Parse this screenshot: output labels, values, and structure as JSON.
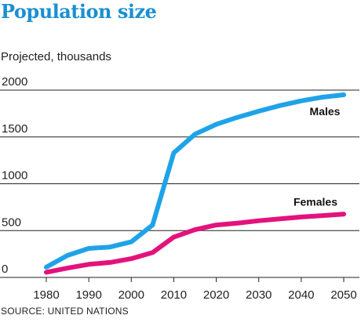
{
  "header": {
    "title": "Population size",
    "subtitle": "Projected, thousands"
  },
  "footer": {
    "source": "SOURCE: UNITED NATIONS"
  },
  "colors": {
    "title": "#1a8fd1",
    "males": "#1fa3e8",
    "females": "#e3127d",
    "gridline": "#222222",
    "text": "#222222"
  },
  "chart_data": {
    "type": "line",
    "title": "Population size",
    "subtitle": "Projected, thousands",
    "xlabel": "",
    "ylabel": "",
    "xlim": [
      1980,
      2050
    ],
    "ylim": [
      0,
      2000
    ],
    "x_ticks": [
      "1980",
      "1990",
      "2000",
      "2010",
      "2020",
      "2030",
      "2040",
      "2050"
    ],
    "y_ticks": [
      "0",
      "500",
      "1000",
      "1500",
      "2000"
    ],
    "grid": "horizontal",
    "x": [
      1980,
      1985,
      1990,
      1995,
      2000,
      2005,
      2010,
      2015,
      2020,
      2025,
      2030,
      2035,
      2040,
      2045,
      2050
    ],
    "series": [
      {
        "name": "Males",
        "color": "#1fa3e8",
        "values": [
          110,
          235,
          310,
          325,
          380,
          560,
          1330,
          1530,
          1635,
          1710,
          1775,
          1835,
          1885,
          1925,
          1950
        ]
      },
      {
        "name": "Females",
        "color": "#e3127d",
        "values": [
          55,
          100,
          140,
          160,
          200,
          265,
          430,
          510,
          560,
          580,
          605,
          625,
          645,
          660,
          675
        ]
      }
    ],
    "source": "SOURCE: UNITED NATIONS"
  }
}
